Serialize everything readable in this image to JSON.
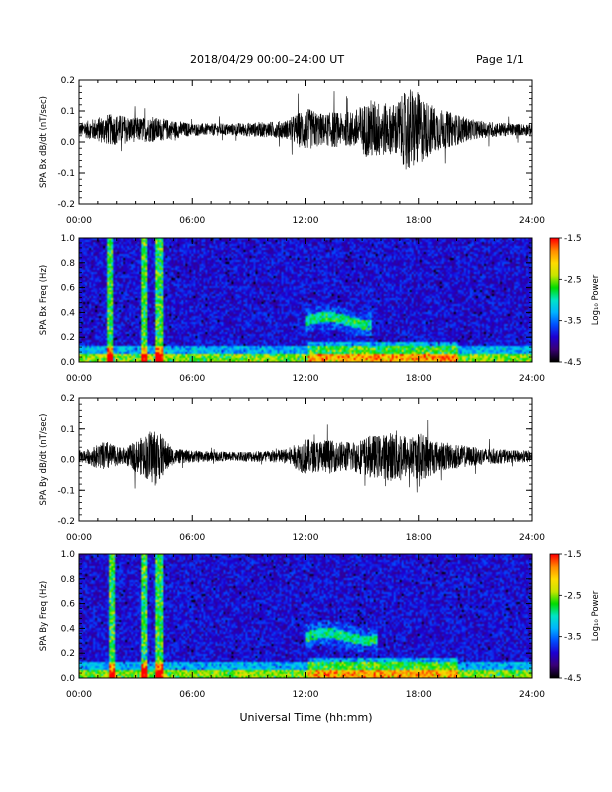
{
  "header": {
    "title": "2018/04/29  00:00–24:00 UT",
    "page": "Page 1/1"
  },
  "x_axis_title": "Universal Time (hh:mm)",
  "colors": {
    "trace": "#000000",
    "colormap": [
      "#000000",
      "#3a0078",
      "#1e00d2",
      "#0050ff",
      "#00b4ff",
      "#00e6c8",
      "#00dc00",
      "#c8e600",
      "#ffdc00",
      "#ff8c00",
      "#ff0000"
    ]
  },
  "chart_data": [
    {
      "type": "line",
      "panel": "bx",
      "ylabel": "SPA Bx dB/dt (nT/sec)",
      "xlim": [
        0,
        24
      ],
      "ylim": [
        -0.2,
        0.2
      ],
      "x_ticks": [
        "00:00",
        "06:00",
        "12:00",
        "18:00",
        "24:00"
      ],
      "y_ticks": [
        "0.2",
        "0.1",
        "0.0",
        "-0.1",
        "-0.2"
      ],
      "baseline": 0.04,
      "envelope_x": [
        0,
        0.5,
        1,
        1.5,
        2,
        3,
        4,
        5,
        6,
        8,
        10,
        11,
        11.5,
        12,
        12.5,
        13,
        13.5,
        14,
        14.5,
        15,
        15.5,
        16,
        16.5,
        17,
        17.5,
        18,
        18.5,
        19,
        19.5,
        20,
        21,
        22,
        23,
        24
      ],
      "envelope_amp": [
        0.02,
        0.03,
        0.04,
        0.05,
        0.05,
        0.04,
        0.04,
        0.03,
        0.02,
        0.02,
        0.025,
        0.03,
        0.05,
        0.07,
        0.06,
        0.05,
        0.06,
        0.05,
        0.06,
        0.08,
        0.1,
        0.09,
        0.08,
        0.1,
        0.14,
        0.12,
        0.09,
        0.07,
        0.06,
        0.05,
        0.03,
        0.025,
        0.02,
        0.02
      ]
    },
    {
      "type": "heatmap",
      "panel": "bx-spectrogram",
      "ylabel": "SPA Bx Freq (Hz)",
      "xlim": [
        0,
        24
      ],
      "ylim": [
        0,
        1.0
      ],
      "x_ticks": [
        "00:00",
        "06:00",
        "12:00",
        "18:00",
        "24:00"
      ],
      "y_ticks": [
        "1.0",
        "0.8",
        "0.6",
        "0.4",
        "0.2",
        "0.0"
      ],
      "colorbar": {
        "label": "Log₁₀ Power",
        "range": [
          -4.5,
          -1.5
        ],
        "ticks": [
          "-1.5",
          "-2.5",
          "-3.5",
          "-4.5"
        ]
      },
      "vertical_bands_hours": [
        1.6,
        3.4,
        4.1,
        4.3
      ],
      "emission_band": {
        "t_start": 12.0,
        "t_end": 15.5,
        "freq_hz": 0.33
      }
    },
    {
      "type": "line",
      "panel": "by",
      "ylabel": "SPA By dB/dt (nT/sec)",
      "xlim": [
        0,
        24
      ],
      "ylim": [
        -0.2,
        0.2
      ],
      "x_ticks": [
        "00:00",
        "06:00",
        "12:00",
        "18:00",
        "24:00"
      ],
      "y_ticks": [
        "0.2",
        "0.1",
        "0.0",
        "-0.1",
        "-0.2"
      ],
      "baseline": 0.01,
      "envelope_x": [
        0,
        0.5,
        1,
        1.5,
        2,
        2.5,
        3,
        3.5,
        4,
        4.5,
        5,
        6,
        8,
        10,
        11,
        11.5,
        12,
        12.5,
        13,
        13.5,
        14,
        14.5,
        15,
        15.5,
        16,
        16.5,
        17,
        17.5,
        18,
        18.5,
        19,
        20,
        21,
        22,
        23,
        24
      ],
      "envelope_amp": [
        0.02,
        0.025,
        0.04,
        0.05,
        0.03,
        0.03,
        0.05,
        0.07,
        0.1,
        0.06,
        0.025,
        0.02,
        0.015,
        0.02,
        0.025,
        0.04,
        0.06,
        0.05,
        0.06,
        0.05,
        0.05,
        0.05,
        0.06,
        0.07,
        0.07,
        0.08,
        0.09,
        0.06,
        0.08,
        0.07,
        0.05,
        0.04,
        0.03,
        0.025,
        0.02,
        0.02
      ]
    },
    {
      "type": "heatmap",
      "panel": "by-spectrogram",
      "ylabel": "SPA By Freq (Hz)",
      "xlim": [
        0,
        24
      ],
      "ylim": [
        0,
        1.0
      ],
      "x_ticks": [
        "00:00",
        "06:00",
        "12:00",
        "18:00",
        "24:00"
      ],
      "y_ticks": [
        "1.0",
        "0.8",
        "0.6",
        "0.4",
        "0.2",
        "0.0"
      ],
      "colorbar": {
        "label": "Log₁₀ Power",
        "range": [
          -4.5,
          -1.5
        ],
        "ticks": [
          "-1.5",
          "-2.5",
          "-3.5",
          "-4.5"
        ]
      },
      "vertical_bands_hours": [
        1.7,
        3.4,
        4.1,
        4.3
      ],
      "emission_band": {
        "t_start": 12.0,
        "t_end": 15.8,
        "freq_hz": 0.33
      }
    }
  ]
}
